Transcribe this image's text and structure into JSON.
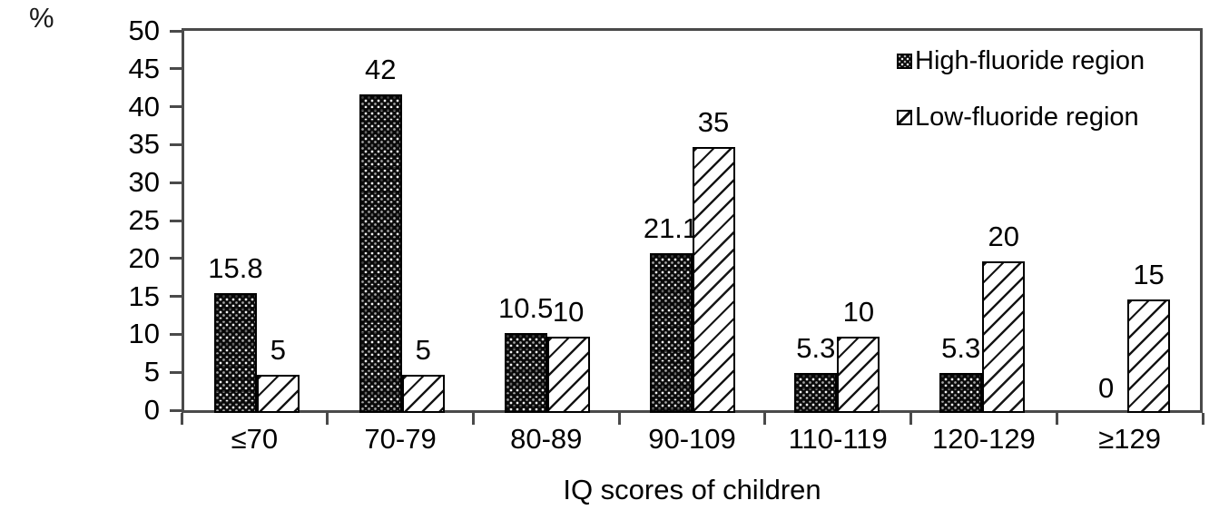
{
  "chart_data": {
    "type": "bar",
    "title": "",
    "ylabel": "%",
    "xlabel": "IQ scores of children",
    "categories": [
      "≤70",
      "70-79",
      "80-89",
      "90-109",
      "110-119",
      "120-129",
      "≥129"
    ],
    "series": [
      {
        "name": "High-fluoride region",
        "pattern": "black-dotted",
        "values": [
          15.8,
          42,
          10.5,
          21.1,
          5.3,
          5.3,
          0
        ]
      },
      {
        "name": "Low-fluoride region",
        "pattern": "diagonal-hatch",
        "values": [
          5,
          5,
          10,
          35,
          10,
          20,
          15
        ]
      }
    ],
    "value_labels": [
      [
        "15.8",
        "42",
        "10.5",
        "21.1",
        "5.3",
        "5.3",
        "0"
      ],
      [
        "5",
        "5",
        "10",
        "35",
        "10",
        "20",
        "15"
      ]
    ],
    "ylim": [
      0,
      50
    ],
    "ytick_step": 5,
    "ytick_labels": [
      "0",
      "5",
      "10",
      "15",
      "20",
      "25",
      "30",
      "35",
      "40",
      "45",
      "50"
    ],
    "legend_position": "top-right-inside",
    "grid": false,
    "colors": {
      "frame": "#4a4a4a",
      "bar_outline": "#000000",
      "text": "#000000",
      "background": "#ffffff"
    }
  }
}
